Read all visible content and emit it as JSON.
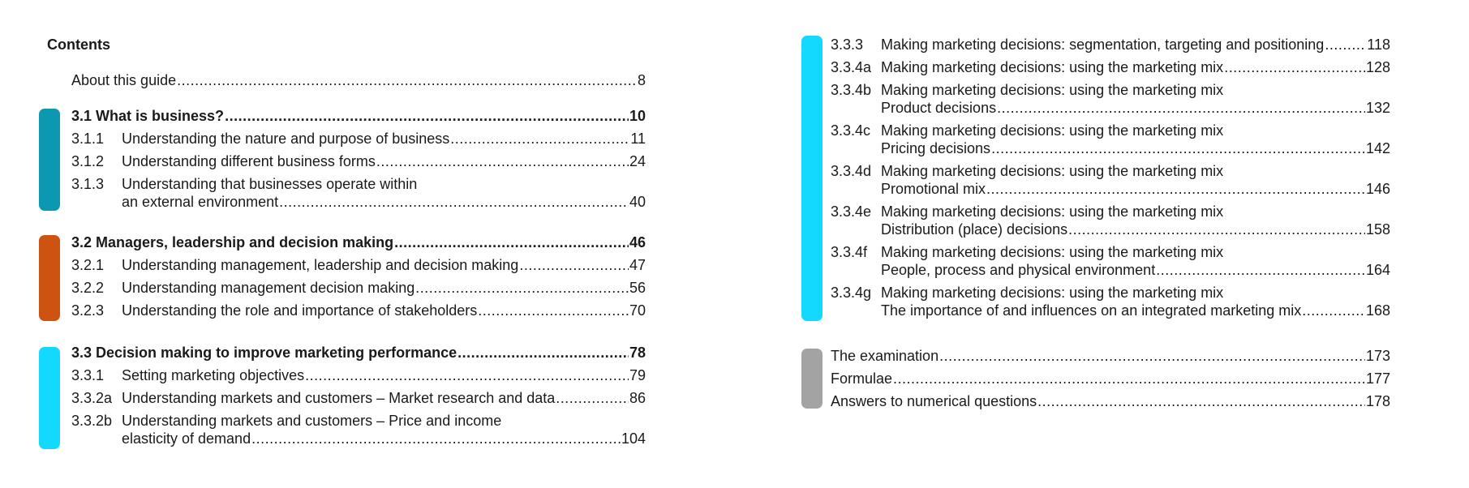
{
  "heading": "Contents",
  "colors": {
    "section_3_1": "#0c98b0",
    "section_3_2": "#cc5310",
    "section_3_3": "#13d9ff",
    "appendix": "#a3a3a3"
  },
  "entries": {
    "about": {
      "title": "About this guide",
      "page": "8"
    },
    "s3_1": {
      "title": "3.1 What is business?",
      "page": "10"
    },
    "s3_1_1": {
      "num": "3.1.1",
      "title": "Understanding the nature and purpose of business",
      "page": "11"
    },
    "s3_1_2": {
      "num": "3.1.2",
      "title": "Understanding different business forms",
      "page": "24"
    },
    "s3_1_3": {
      "num": "3.1.3",
      "title": "Understanding that businesses operate within",
      "title2": "an external environment",
      "page": "40"
    },
    "s3_2": {
      "title": "3.2 Managers, leadership and decision making",
      "page": "46"
    },
    "s3_2_1": {
      "num": "3.2.1",
      "title": "Understanding management, leadership and decision making",
      "page": "47"
    },
    "s3_2_2": {
      "num": "3.2.2",
      "title": "Understanding management decision making",
      "page": "56"
    },
    "s3_2_3": {
      "num": "3.2.3",
      "title": "Understanding the role and importance of stakeholders",
      "page": "70"
    },
    "s3_3": {
      "title": "3.3 Decision making to improve marketing performance",
      "page": "78"
    },
    "s3_3_1": {
      "num": "3.3.1",
      "title": "Setting marketing objectives",
      "page": "79"
    },
    "s3_3_2a": {
      "num": "3.3.2a",
      "title": "Understanding markets and customers – Market research and data",
      "page": "86"
    },
    "s3_3_2b": {
      "num": "3.3.2b",
      "title": "Understanding markets and customers – Price and income",
      "title2": "elasticity of demand",
      "page": "104"
    },
    "s3_3_3": {
      "num": "3.3.3",
      "title": "Making marketing decisions: segmentation, targeting and positioning",
      "page": "118"
    },
    "s3_3_4a": {
      "num": "3.3.4a",
      "title": "Making marketing decisions: using the marketing mix",
      "page": "128"
    },
    "s3_3_4b": {
      "num": "3.3.4b",
      "title": "Making marketing decisions: using the marketing mix",
      "title2": "Product decisions",
      "page": "132"
    },
    "s3_3_4c": {
      "num": "3.3.4c",
      "title": "Making marketing decisions: using the marketing mix",
      "title2": "Pricing decisions",
      "page": "142"
    },
    "s3_3_4d": {
      "num": "3.3.4d",
      "title": "Making marketing decisions: using the marketing mix",
      "title2": "Promotional mix",
      "page": "146"
    },
    "s3_3_4e": {
      "num": "3.3.4e",
      "title": "Making marketing decisions: using the marketing mix",
      "title2": "Distribution (place) decisions",
      "page": "158"
    },
    "s3_3_4f": {
      "num": "3.3.4f",
      "title": "Making marketing decisions: using the marketing mix",
      "title2": "People, process and physical environment",
      "page": "164"
    },
    "s3_3_4g": {
      "num": "3.3.4g",
      "title": "Making marketing decisions: using the marketing mix",
      "title2": "The importance of and influences on an integrated marketing mix",
      "page": "168"
    },
    "exam": {
      "title": "The examination",
      "page": "173"
    },
    "formulae": {
      "title": "Formulae",
      "page": "177"
    },
    "answers": {
      "title": "Answers to numerical questions",
      "page": "178"
    }
  }
}
